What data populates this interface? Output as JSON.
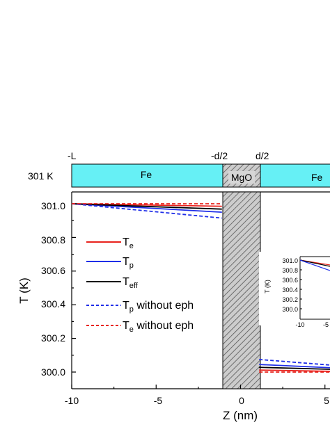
{
  "chart_data": {
    "type": "line",
    "xlabel": "Z (nm)",
    "ylabel": "T (K)",
    "xlim": [
      -10,
      5.5
    ],
    "ylim": [
      299.9,
      301.05
    ],
    "xticks": [
      "-10",
      "-5",
      "0",
      "5"
    ],
    "yticks": [
      "300.0",
      "300.2",
      "300.4",
      "300.6",
      "300.8",
      "301.0"
    ],
    "barrier": {
      "x_start": -1.1,
      "x_end": 1.1
    },
    "legend_position": "center-left",
    "series": [
      {
        "name": "T",
        "sub": "e",
        "color": "#e8231d",
        "dash": "solid",
        "x": [
          -10,
          -1.1,
          1.1,
          5.5
        ],
        "y": [
          301.0,
          300.985,
          300.012,
          300.004
        ]
      },
      {
        "name": "T",
        "sub": "p",
        "color": "#1f2ee8",
        "dash": "solid",
        "x": [
          -10,
          -1.1,
          1.1,
          5.5
        ],
        "y": [
          301.0,
          300.95,
          300.045,
          300.025
        ]
      },
      {
        "name": "T",
        "sub": "eff",
        "color": "#000000",
        "dash": "solid",
        "x": [
          -10,
          -1.1,
          1.1,
          5.5
        ],
        "y": [
          301.0,
          300.968,
          300.028,
          300.016
        ]
      },
      {
        "name": "T",
        "sub": "p",
        "suffix": " without eph",
        "color": "#1f2ee8",
        "dash": "dashed",
        "x": [
          -10,
          -1.1,
          1.1,
          5.5
        ],
        "y": [
          301.0,
          300.915,
          300.075,
          300.04
        ]
      },
      {
        "name": "T",
        "sub": "e",
        "suffix": " without eph",
        "color": "#e8231d",
        "dash": "dashed",
        "x": [
          -10,
          -1.1,
          1.1,
          5.5
        ],
        "y": [
          301.0,
          301.0,
          300.0,
          300.0
        ]
      }
    ],
    "schematic": {
      "left_label": "301 K",
      "markers": [
        "-L",
        "-d/2",
        "d/2"
      ],
      "layers": [
        "Fe",
        "MgO",
        "Fe"
      ],
      "layer_color": "#66f0f5"
    },
    "inset": {
      "ylabel": "T (K)",
      "yticks": [
        "301.0",
        "300.8",
        "300.6",
        "300.4",
        "300.2",
        "300.0"
      ],
      "xticks": [
        "-10",
        "-5"
      ]
    }
  }
}
